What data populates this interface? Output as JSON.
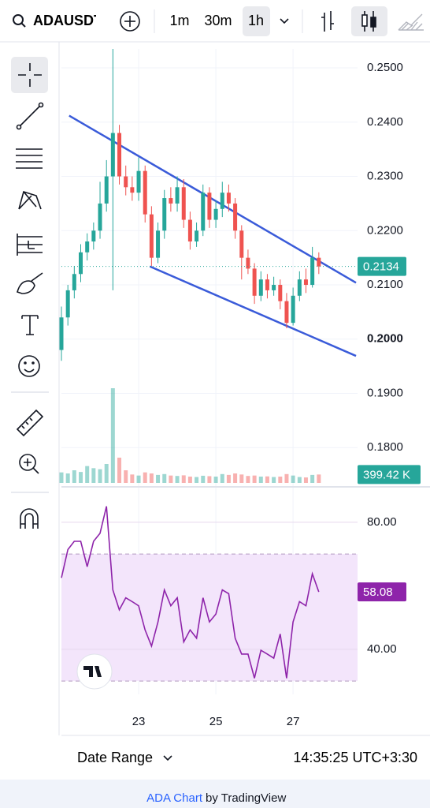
{
  "toolbar": {
    "symbol": "ADAUSDT",
    "intervals": [
      "1m",
      "30m",
      "1h"
    ]
  },
  "chart_data": [
    {
      "type": "candlestick",
      "up_color": "#26a69a",
      "down_color": "#ef5350",
      "x": [
        21,
        21.167,
        21.333,
        21.5,
        21.667,
        21.833,
        22,
        22.167,
        22.333,
        22.5,
        22.667,
        22.833,
        23,
        23.167,
        23.333,
        23.5,
        23.667,
        23.833,
        24,
        24.167,
        24.333,
        24.5,
        24.667,
        24.833,
        25,
        25.167,
        25.333,
        25.5,
        25.667,
        25.833,
        26,
        26.167,
        26.333,
        26.5,
        26.667,
        26.833,
        27,
        27.167,
        27.333,
        27.5,
        27.667
      ],
      "open": [
        0.198,
        0.204,
        0.209,
        0.212,
        0.216,
        0.218,
        0.22,
        0.225,
        0.23,
        0.238,
        0.23,
        0.228,
        0.227,
        0.231,
        0.223,
        0.215,
        0.22,
        0.226,
        0.225,
        0.228,
        0.222,
        0.218,
        0.22,
        0.227,
        0.222,
        0.224,
        0.227,
        0.225,
        0.22,
        0.215,
        0.213,
        0.208,
        0.211,
        0.209,
        0.21,
        0.207,
        0.203,
        0.208,
        0.211,
        0.21,
        0.215
      ],
      "high": [
        0.206,
        0.21,
        0.2135,
        0.2175,
        0.2195,
        0.2215,
        0.229,
        0.233,
        0.2535,
        0.2395,
        0.232,
        0.23,
        0.2335,
        0.232,
        0.2245,
        0.2215,
        0.2275,
        0.228,
        0.23,
        0.2295,
        0.2235,
        0.2215,
        0.2285,
        0.228,
        0.2255,
        0.229,
        0.2285,
        0.226,
        0.221,
        0.2165,
        0.214,
        0.2125,
        0.212,
        0.2115,
        0.211,
        0.2085,
        0.2095,
        0.2125,
        0.213,
        0.217,
        0.216
      ],
      "low": [
        0.196,
        0.2025,
        0.2075,
        0.2105,
        0.2145,
        0.2165,
        0.2185,
        0.2235,
        0.209,
        0.2285,
        0.2265,
        0.2255,
        0.2255,
        0.2215,
        0.2135,
        0.214,
        0.2185,
        0.2235,
        0.2235,
        0.2205,
        0.2165,
        0.217,
        0.219,
        0.2205,
        0.2205,
        0.2225,
        0.2235,
        0.2185,
        0.211,
        0.212,
        0.2065,
        0.207,
        0.2075,
        0.208,
        0.2055,
        0.202,
        0.2025,
        0.207,
        0.2085,
        0.2095,
        0.212
      ],
      "close": [
        0.204,
        0.209,
        0.212,
        0.216,
        0.218,
        0.22,
        0.225,
        0.23,
        0.238,
        0.23,
        0.228,
        0.227,
        0.231,
        0.223,
        0.215,
        0.22,
        0.226,
        0.225,
        0.228,
        0.222,
        0.218,
        0.22,
        0.227,
        0.222,
        0.224,
        0.227,
        0.225,
        0.22,
        0.215,
        0.213,
        0.208,
        0.211,
        0.209,
        0.21,
        0.207,
        0.203,
        0.208,
        0.211,
        0.21,
        0.215,
        0.2134
      ],
      "xlim": [
        21,
        28.67
      ],
      "xticks": [
        23,
        25,
        27
      ],
      "ylim": [
        0.1732,
        0.2535
      ],
      "yticks": [
        {
          "value": 0.18,
          "label": "0.1800"
        },
        {
          "value": 0.19,
          "label": "0.1900"
        },
        {
          "value": 0.2,
          "label": "0.2000"
        },
        {
          "value": 0.21,
          "label": "0.2100"
        },
        {
          "value": 0.22,
          "label": "0.2200"
        },
        {
          "value": 0.23,
          "label": "0.2300"
        },
        {
          "value": 0.24,
          "label": "0.2400"
        },
        {
          "value": 0.25,
          "label": "0.2500"
        }
      ],
      "grid": true,
      "last_price": {
        "value": 0.2134,
        "label": "0.2134"
      },
      "trendline_color": "#3a5bd9",
      "trendlines": [
        {
          "x": [
            21.2,
            28.63
          ],
          "y": [
            0.2412,
            0.2104
          ]
        },
        {
          "x": [
            23.29,
            28.63
          ],
          "y": [
            0.2134,
            0.1969
          ]
        }
      ]
    },
    {
      "type": "bar",
      "values": [
        500,
        450,
        600,
        520,
        800,
        700,
        650,
        900,
        4500,
        1200,
        600,
        400,
        350,
        500,
        450,
        380,
        420,
        350,
        330,
        360,
        300,
        280,
        340,
        320,
        300,
        420,
        380,
        450,
        400,
        330,
        350,
        300,
        310,
        280,
        300,
        420,
        350,
        280,
        260,
        380,
        399.42
      ],
      "ylim": [
        0,
        6000
      ],
      "last_value": {
        "value": 399.42,
        "label": "399.42 K"
      }
    },
    {
      "type": "line",
      "color": "#8e24aa",
      "band": [
        30,
        70
      ],
      "values": [
        62.5,
        71.4,
        74,
        74,
        66,
        74,
        76.5,
        85,
        58.7,
        52.4,
        56.2,
        55,
        53.7,
        46.1,
        41,
        48.6,
        58.7,
        53.7,
        56.2,
        42.3,
        46.1,
        43.5,
        56.2,
        48.6,
        51.1,
        58.7,
        57.5,
        43.5,
        38.5,
        38.5,
        30.9,
        39.7,
        38.5,
        37.2,
        44.8,
        30.9,
        48.6,
        55,
        53.7,
        63.8,
        58.08
      ],
      "ylim": [
        25.8,
        90.4
      ],
      "yticks": [
        {
          "value": 40,
          "label": "40.00"
        },
        {
          "value": 80,
          "label": "80.00"
        }
      ],
      "last_value": {
        "value": 58.08,
        "label": "58.08"
      }
    }
  ],
  "footer": {
    "range": "Date Range",
    "time": "14:35:25 UTC+3:30"
  },
  "attribution": {
    "link": "ADA Chart",
    "text": "by TradingView"
  }
}
